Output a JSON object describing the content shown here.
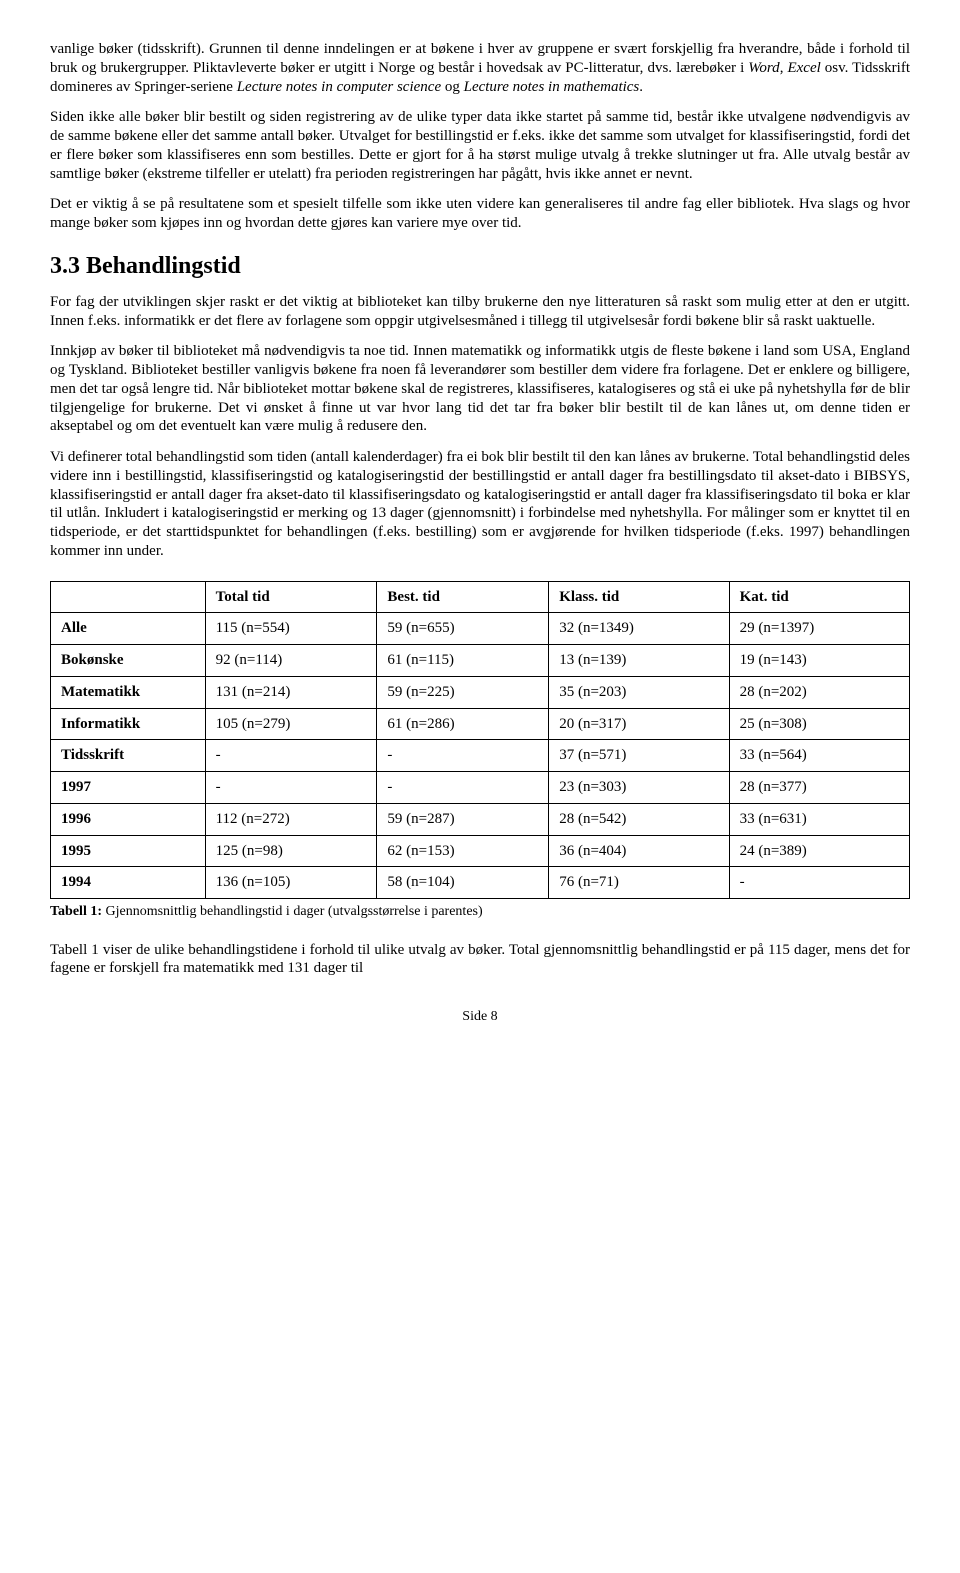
{
  "paragraphs": {
    "p1a": "vanlige bøker (tidsskrift). Grunnen til denne inndelingen er at bøkene i hver av gruppene er svært forskjellig fra hverandre, både i forhold til bruk og brukergrupper. Pliktavleverte bøker er utgitt i Norge og består i hovedsak av PC-litteratur, dvs. lærebøker i ",
    "p1i1": "Word",
    "p1b": ", ",
    "p1i2": "Excel",
    "p1c": " osv. Tidsskrift domineres av Springer-seriene ",
    "p1i3": "Lecture notes in computer science",
    "p1d": " og ",
    "p1i4": "Lecture notes in mathematics",
    "p1e": ".",
    "p2": "Siden ikke alle bøker blir bestilt og siden registrering av de ulike typer data ikke startet på samme tid, består ikke utvalgene nødvendigvis av de samme bøkene eller det samme antall bøker. Utvalget for bestillingstid er f.eks. ikke det samme som utvalget for klassifiseringstid, fordi det er flere bøker som klassifiseres enn som bestilles. Dette er gjort for å ha størst mulige utvalg å trekke slutninger ut fra. Alle utvalg består av samtlige bøker (ekstreme tilfeller er utelatt) fra perioden registreringen har pågått, hvis ikke annet er nevnt.",
    "p3": "Det er viktig å se på resultatene som et spesielt tilfelle som ikke uten videre kan generaliseres til andre fag eller bibliotek. Hva slags og hvor mange bøker som kjøpes inn og hvordan dette gjøres kan variere mye over tid.",
    "heading": "3.3 Behandlingstid",
    "p4": "For fag der utviklingen skjer raskt er det viktig at biblioteket kan tilby brukerne den nye litteraturen så raskt som mulig etter at den er utgitt. Innen f.eks. informatikk er det flere av forlagene som oppgir utgivelsesmåned i tillegg til utgivelsesår fordi bøkene blir så raskt uaktuelle.",
    "p5": "Innkjøp av bøker til biblioteket må nødvendigvis ta noe tid. Innen matematikk og informatikk utgis de fleste bøkene i land som USA, England og Tyskland. Biblioteket bestiller vanligvis bøkene fra noen få leverandører som bestiller dem videre fra forlagene. Det er enklere og billigere, men det tar også lengre tid. Når biblioteket mottar bøkene skal de registreres, klassifiseres, katalogiseres og stå ei uke på nyhetshylla før de blir tilgjengelige for brukerne. Det vi ønsket å finne ut var hvor lang tid det tar fra bøker blir bestilt til de kan lånes ut, om denne tiden er akseptabel og om det eventuelt kan være mulig å redusere den.",
    "p6": "Vi definerer total behandlingstid som tiden (antall kalenderdager) fra ei bok blir bestilt til den kan lånes av brukerne. Total behandlingstid deles videre inn i bestillingstid, klassifiseringstid og katalogiseringstid der bestillingstid er antall dager fra bestillingsdato til akset-dato i BIBSYS, klassifiseringstid er antall dager fra akset-dato til klassifiseringsdato og katalogiseringstid er antall dager fra klassifiseringsdato til boka er klar til utlån. Inkludert i katalogiseringstid er merking og 13 dager (gjennomsnitt) i forbindelse med nyhetshylla. For målinger som er knyttet til en tidsperiode, er det starttidspunktet for behandlingen (f.eks. bestilling) som er avgjørende for hvilken tidsperiode (f.eks. 1997) behandlingen kommer inn under.",
    "caption_b": "Tabell 1:",
    "caption": " Gjennomsnittlig behandlingstid i dager (utvalgsstørrelse i parentes)",
    "p7": "Tabell 1 viser de ulike behandlingstidene i forhold til ulike utvalg av bøker. Total gjennomsnittlig behandlingstid er på 115 dager, mens det for fagene er forskjell fra matematikk med 131 dager til",
    "footer": "Side 8"
  },
  "table": {
    "headers": [
      "",
      "Total tid",
      "Best. tid",
      "Klass. tid",
      "Kat. tid"
    ],
    "rows": [
      [
        "Alle",
        "115 (n=554)",
        "59 (n=655)",
        "32 (n=1349)",
        "29 (n=1397)"
      ],
      [
        "Bokønske",
        "92 (n=114)",
        "61 (n=115)",
        "13 (n=139)",
        "19 (n=143)"
      ],
      [
        "Matematikk",
        "131 (n=214)",
        "59 (n=225)",
        "35 (n=203)",
        "28 (n=202)"
      ],
      [
        "Informatikk",
        "105 (n=279)",
        "61 (n=286)",
        "20 (n=317)",
        "25 (n=308)"
      ],
      [
        "Tidsskrift",
        "-",
        "-",
        "37 (n=571)",
        "33 (n=564)"
      ],
      [
        "1997",
        "-",
        "-",
        "23 (n=303)",
        "28 (n=377)"
      ],
      [
        "1996",
        "112 (n=272)",
        "59 (n=287)",
        "28 (n=542)",
        "33 (n=631)"
      ],
      [
        "1995",
        "125 (n=98)",
        "62 (n=153)",
        "36 (n=404)",
        "24 (n=389)"
      ],
      [
        "1994",
        "136 (n=105)",
        "58 (n=104)",
        "76 (n=71)",
        "-"
      ]
    ],
    "col_widths": [
      "18%",
      "20%",
      "20%",
      "21%",
      "21%"
    ]
  }
}
